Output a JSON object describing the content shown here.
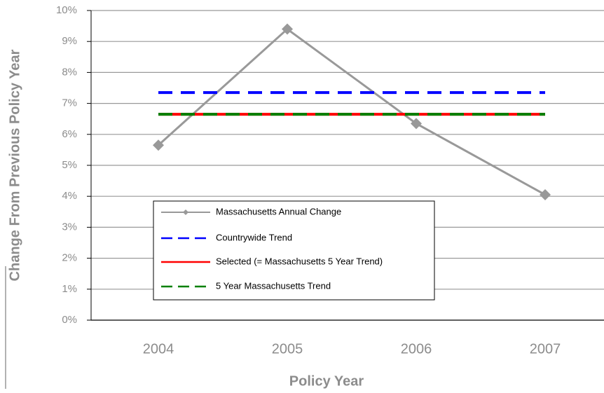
{
  "chart_data": {
    "type": "line",
    "x_label": "Policy Year",
    "y_label": "Change From Previous Policy Year",
    "categories": [
      "2004",
      "2005",
      "2006",
      "2007"
    ],
    "series": [
      {
        "name": "Massachusetts Annual Change",
        "color": "#999999",
        "style": "solid-marker",
        "values": [
          5.65,
          9.4,
          6.35,
          4.05
        ]
      },
      {
        "name": "Countrywide Trend",
        "color": "#0000ff",
        "style": "dashed",
        "values": [
          7.35,
          7.35,
          7.35,
          7.35
        ]
      },
      {
        "name": "Selected (= Massachusetts 5 Year Trend)",
        "color": "#ff0000",
        "style": "solid",
        "values": [
          6.65,
          6.65,
          6.65,
          6.65
        ]
      },
      {
        "name": "5 Year Massachusetts Trend",
        "color": "#008000",
        "style": "dashed",
        "values": [
          6.65,
          6.65,
          6.65,
          6.65
        ]
      }
    ],
    "ylim": [
      0,
      10
    ],
    "yticks": [
      {
        "value": 0,
        "label": "0%"
      },
      {
        "value": 1,
        "label": "1%"
      },
      {
        "value": 2,
        "label": "2%"
      },
      {
        "value": 3,
        "label": "3%"
      },
      {
        "value": 4,
        "label": "4%"
      },
      {
        "value": 5,
        "label": "5%"
      },
      {
        "value": 6,
        "label": "6%"
      },
      {
        "value": 7,
        "label": "7%"
      },
      {
        "value": 8,
        "label": "8%"
      },
      {
        "value": 9,
        "label": "9%"
      },
      {
        "value": 10,
        "label": "10%"
      }
    ],
    "grid": true,
    "legend": "lower-left"
  }
}
